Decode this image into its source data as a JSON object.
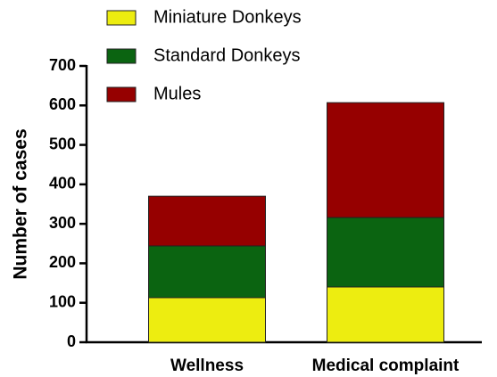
{
  "chart_data": {
    "type": "stacked_bar",
    "y_label": "Number of cases",
    "categories": [
      "Wellness",
      "Medical complaint"
    ],
    "series": [
      {
        "name": "Miniature Donkeys",
        "color": "#eded10",
        "values": [
          113,
          140
        ]
      },
      {
        "name": "Standard Donkeys",
        "color": "#0b6411",
        "values": [
          131,
          176
        ]
      },
      {
        "name": "Mules",
        "color": "#960000",
        "values": [
          126,
          291
        ]
      }
    ],
    "ylim": [
      0,
      700
    ],
    "yticks": [
      0,
      100,
      200,
      300,
      400,
      500,
      600,
      700
    ]
  }
}
